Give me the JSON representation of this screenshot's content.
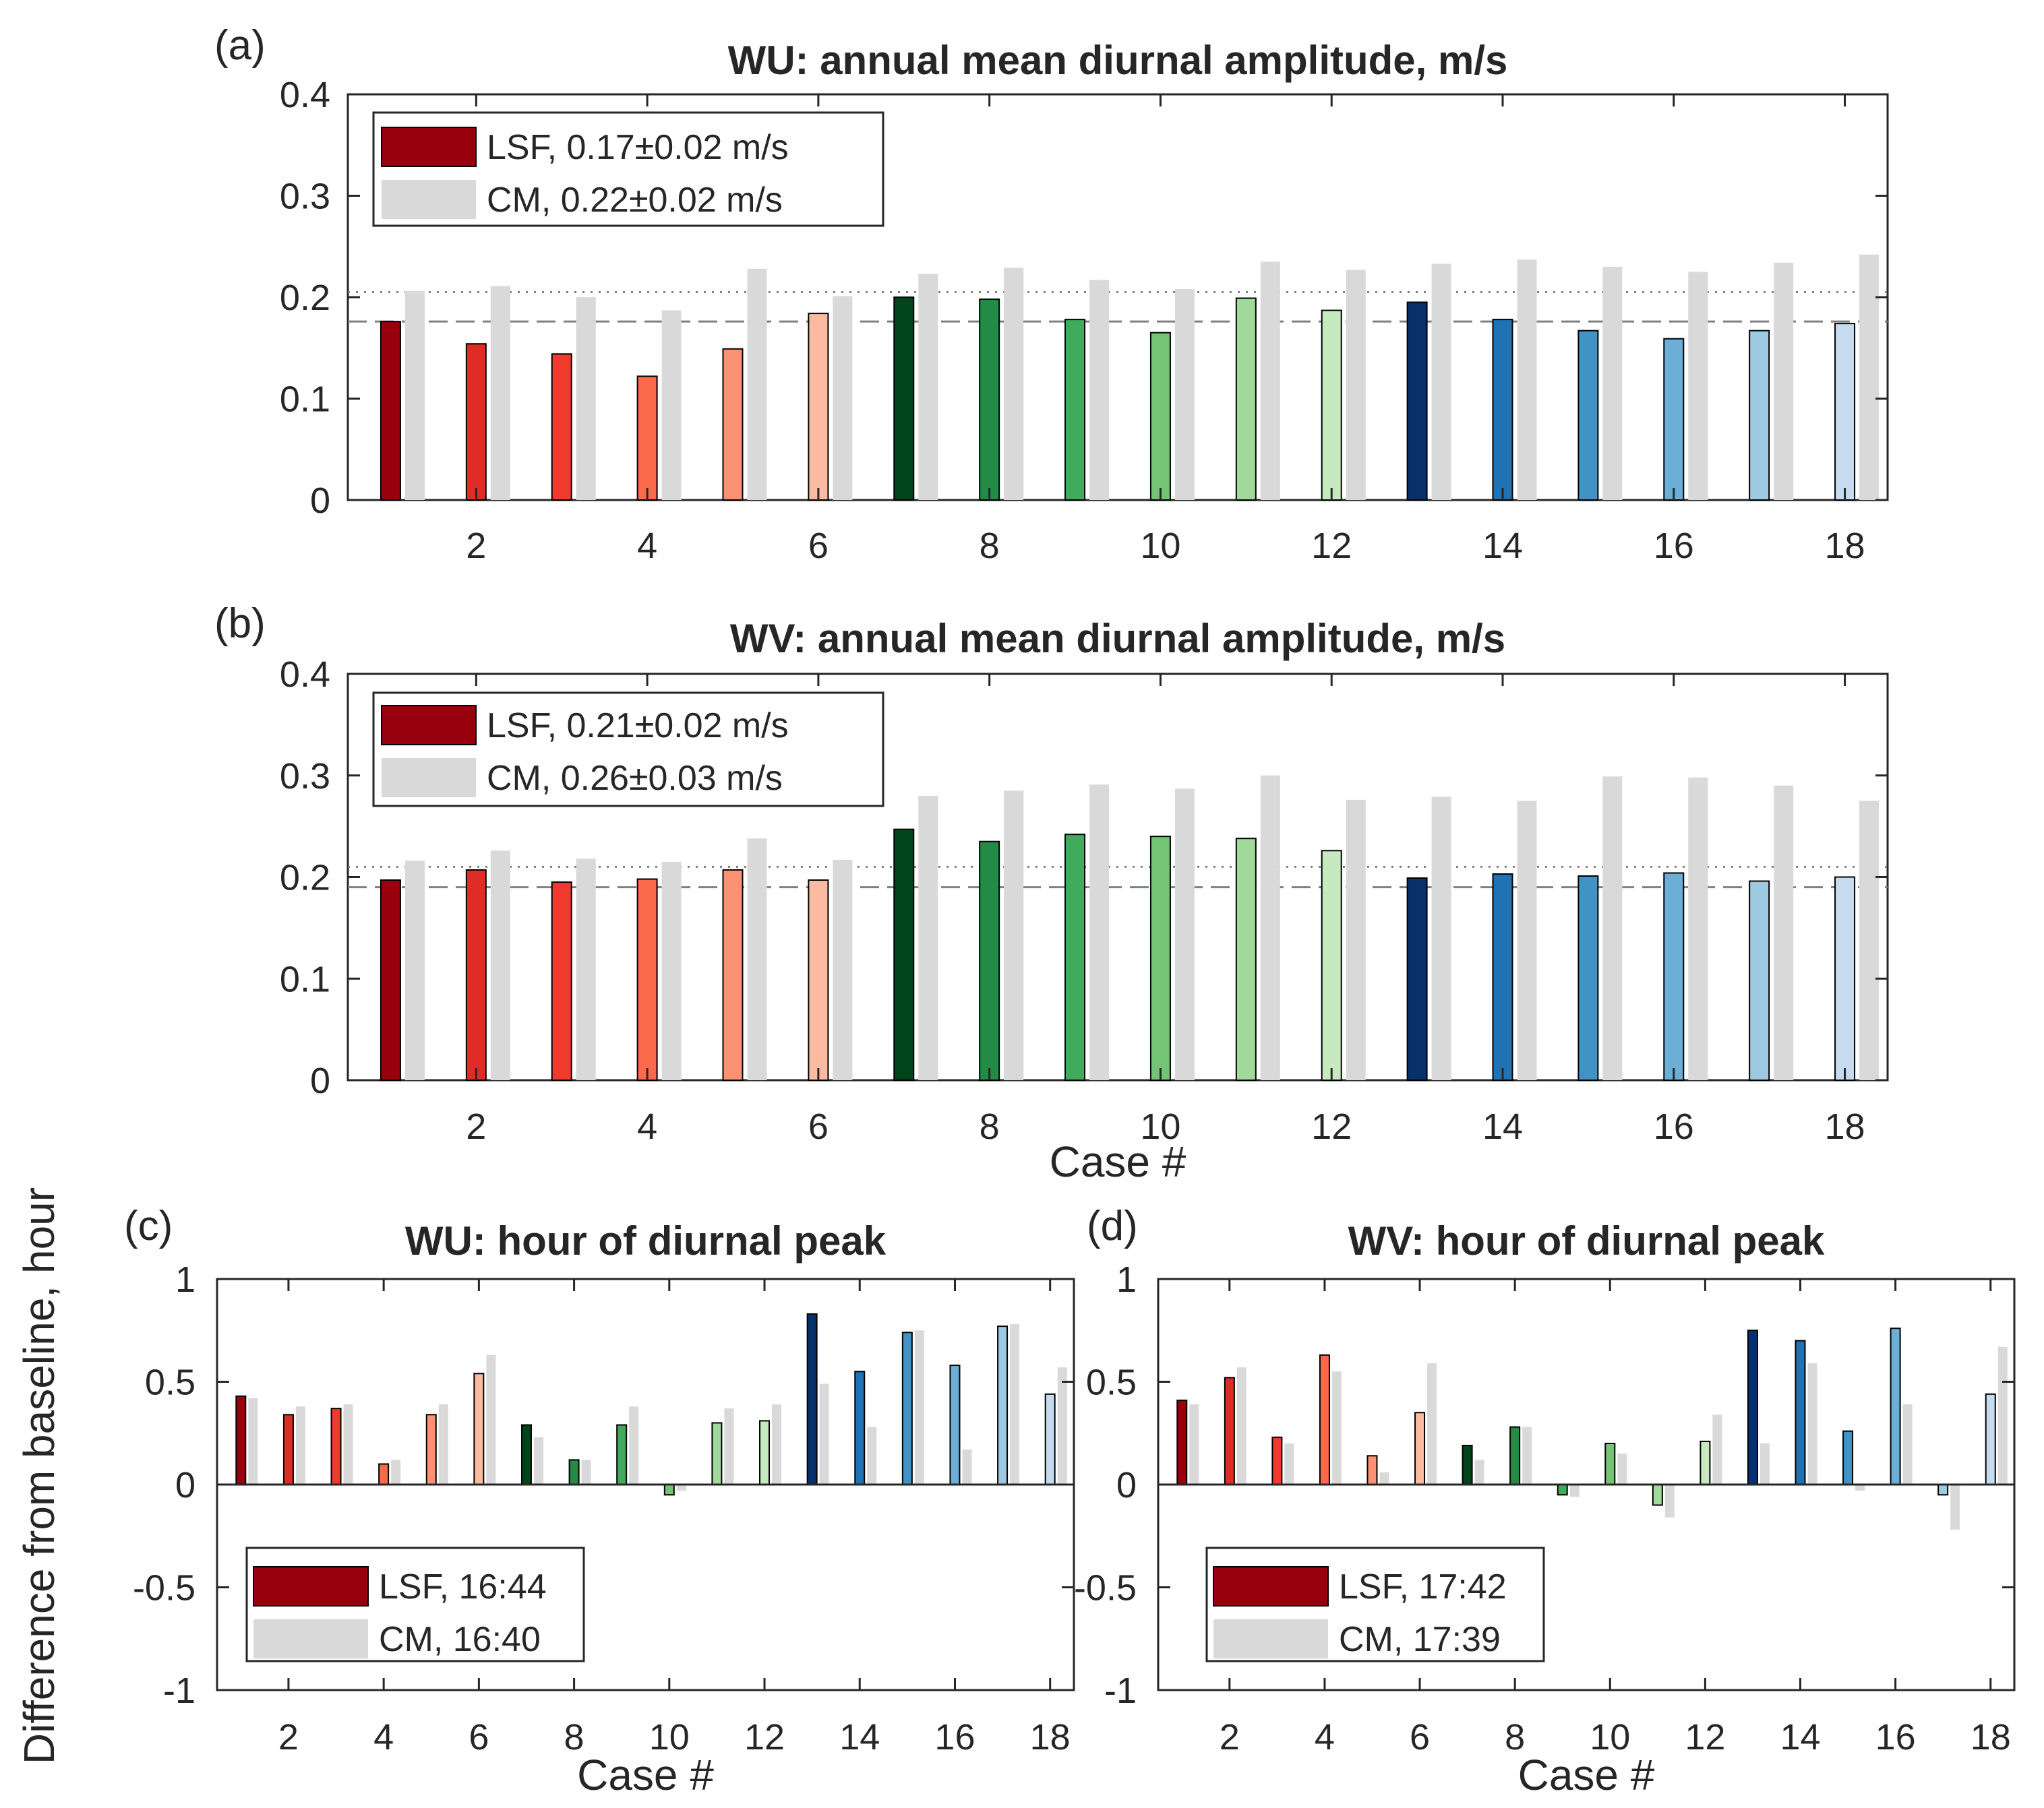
{
  "figure": {
    "xlabel_bottom": "Case #",
    "ylabel_hour": "Difference from baseline, hour"
  },
  "colors": {
    "cm": "#d9d9d9",
    "cases": [
      "#99000d",
      "#de2d26",
      "#ef3b2c",
      "#fb6a4a",
      "#fc9272",
      "#fcbba1",
      "#00441b",
      "#238b45",
      "#41ab5d",
      "#74c476",
      "#a1d99b",
      "#c7e9c0",
      "#08306b",
      "#2171b5",
      "#4292c6",
      "#6baed6",
      "#9ecae1",
      "#c6dbef"
    ]
  },
  "chart_data": [
    {
      "id": "a",
      "panel_label": "(a)",
      "type": "bar",
      "title": "WU: annual mean diurnal amplitude, m/s",
      "xlabel": "",
      "ylabel": "",
      "categories": [
        1,
        2,
        3,
        4,
        5,
        6,
        7,
        8,
        9,
        10,
        11,
        12,
        13,
        14,
        15,
        16,
        17,
        18
      ],
      "xticks": [
        2,
        4,
        6,
        8,
        10,
        12,
        14,
        16,
        18
      ],
      "ylim": [
        0,
        0.4
      ],
      "yticks": [
        "0",
        "0.1",
        "0.2",
        "0.3",
        "0.4"
      ],
      "series": [
        {
          "name": "LSF",
          "values": [
            0.176,
            0.154,
            0.144,
            0.122,
            0.149,
            0.184,
            0.2,
            0.198,
            0.178,
            0.165,
            0.199,
            0.187,
            0.195,
            0.178,
            0.167,
            0.159,
            0.167,
            0.174
          ]
        },
        {
          "name": "CM",
          "values": [
            0.206,
            0.211,
            0.2,
            0.187,
            0.228,
            0.201,
            0.223,
            0.229,
            0.217,
            0.208,
            0.235,
            0.227,
            0.233,
            0.237,
            0.23,
            0.225,
            0.234,
            0.242
          ]
        }
      ],
      "reference_lines": {
        "dotted": 0.205,
        "dashed": 0.176
      },
      "legend": {
        "position": "top-left",
        "entries": [
          {
            "series": "LSF",
            "text": "LSF, 0.17±0.02 m/s"
          },
          {
            "series": "CM",
            "text": "CM, 0.22±0.02 m/s"
          }
        ]
      }
    },
    {
      "id": "b",
      "panel_label": "(b)",
      "type": "bar",
      "title": "WV: annual mean diurnal amplitude, m/s",
      "xlabel": "Case #",
      "ylabel": "",
      "categories": [
        1,
        2,
        3,
        4,
        5,
        6,
        7,
        8,
        9,
        10,
        11,
        12,
        13,
        14,
        15,
        16,
        17,
        18
      ],
      "xticks": [
        2,
        4,
        6,
        8,
        10,
        12,
        14,
        16,
        18
      ],
      "ylim": [
        0,
        0.4
      ],
      "yticks": [
        "0",
        "0.1",
        "0.2",
        "0.3",
        "0.4"
      ],
      "series": [
        {
          "name": "LSF",
          "values": [
            0.197,
            0.207,
            0.195,
            0.198,
            0.207,
            0.197,
            0.247,
            0.235,
            0.242,
            0.24,
            0.238,
            0.226,
            0.199,
            0.203,
            0.201,
            0.204,
            0.196,
            0.2
          ]
        },
        {
          "name": "CM",
          "values": [
            0.216,
            0.226,
            0.218,
            0.215,
            0.238,
            0.217,
            0.28,
            0.285,
            0.291,
            0.287,
            0.3,
            0.276,
            0.279,
            0.275,
            0.299,
            0.298,
            0.29,
            0.275
          ]
        }
      ],
      "reference_lines": {
        "dotted": 0.21,
        "dashed": 0.19
      },
      "legend": {
        "position": "top-left",
        "entries": [
          {
            "series": "LSF",
            "text": "LSF, 0.21±0.02 m/s"
          },
          {
            "series": "CM",
            "text": "CM, 0.26±0.03 m/s"
          }
        ]
      }
    },
    {
      "id": "c",
      "panel_label": "(c)",
      "type": "bar",
      "title": "WU: hour of diurnal peak",
      "xlabel": "Case #",
      "ylabel": "Difference from baseline, hour",
      "categories": [
        1,
        2,
        3,
        4,
        5,
        6,
        7,
        8,
        9,
        10,
        11,
        12,
        13,
        14,
        15,
        16,
        17,
        18
      ],
      "xticks": [
        2,
        4,
        6,
        8,
        10,
        12,
        14,
        16,
        18
      ],
      "ylim": [
        -1,
        1
      ],
      "yticks": [
        "-1",
        "-0.5",
        "0",
        "0.5",
        "1"
      ],
      "series": [
        {
          "name": "LSF",
          "values": [
            0.43,
            0.34,
            0.37,
            0.1,
            0.34,
            0.54,
            0.29,
            0.12,
            0.29,
            -0.05,
            0.3,
            0.31,
            0.83,
            0.55,
            0.74,
            0.58,
            0.77,
            0.44
          ]
        },
        {
          "name": "CM",
          "values": [
            0.42,
            0.38,
            0.39,
            0.12,
            0.39,
            0.63,
            0.23,
            0.12,
            0.38,
            -0.03,
            0.37,
            0.39,
            0.49,
            0.28,
            0.75,
            0.17,
            0.78,
            0.57
          ]
        }
      ],
      "legend": {
        "position": "bottom-left",
        "entries": [
          {
            "series": "LSF",
            "text": "LSF, 16:44"
          },
          {
            "series": "CM",
            "text": "CM, 16:40"
          }
        ]
      }
    },
    {
      "id": "d",
      "panel_label": "(d)",
      "type": "bar",
      "title": "WV: hour of diurnal peak",
      "xlabel": "Case #",
      "ylabel": "",
      "categories": [
        1,
        2,
        3,
        4,
        5,
        6,
        7,
        8,
        9,
        10,
        11,
        12,
        13,
        14,
        15,
        16,
        17,
        18
      ],
      "xticks": [
        2,
        4,
        6,
        8,
        10,
        12,
        14,
        16,
        18
      ],
      "ylim": [
        -1,
        1
      ],
      "yticks": [
        "-1",
        "-0.5",
        "0",
        "0.5",
        "1"
      ],
      "series": [
        {
          "name": "LSF",
          "values": [
            0.41,
            0.52,
            0.23,
            0.63,
            0.14,
            0.35,
            0.19,
            0.28,
            -0.05,
            0.2,
            -0.1,
            0.21,
            0.75,
            0.7,
            0.26,
            0.76,
            -0.05,
            0.44
          ]
        },
        {
          "name": "CM",
          "values": [
            0.39,
            0.57,
            0.2,
            0.55,
            0.06,
            0.59,
            0.12,
            0.28,
            -0.06,
            0.15,
            -0.16,
            0.34,
            0.2,
            0.59,
            -0.03,
            0.39,
            -0.22,
            0.67
          ]
        }
      ],
      "legend": {
        "position": "bottom-left",
        "entries": [
          {
            "series": "LSF",
            "text": "LSF, 17:42"
          },
          {
            "series": "CM",
            "text": "CM, 17:39"
          }
        ]
      }
    }
  ]
}
